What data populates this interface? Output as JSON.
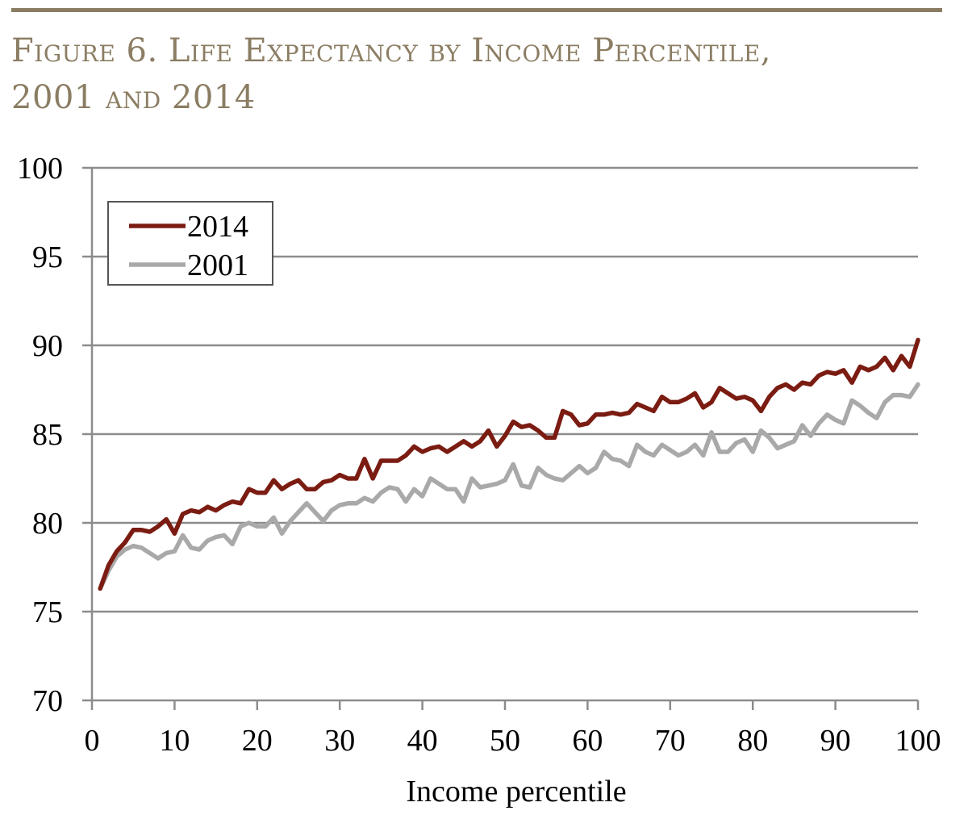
{
  "figure": {
    "title_line1": "Figure 6. Life Expectancy by Income Percentile,",
    "title_line2": "2001 and 2014"
  },
  "chart_data": {
    "type": "line",
    "xlabel": "Income percentile",
    "ylabel": "",
    "xlim": [
      0,
      100
    ],
    "ylim": [
      70,
      100
    ],
    "xticks": [
      0,
      10,
      20,
      30,
      40,
      50,
      60,
      70,
      80,
      90,
      100
    ],
    "yticks": [
      70,
      75,
      80,
      85,
      90,
      95,
      100
    ],
    "grid": "horizontal",
    "legend_position": "top-left",
    "x": [
      1,
      2,
      3,
      4,
      5,
      6,
      7,
      8,
      9,
      10,
      11,
      12,
      13,
      14,
      15,
      16,
      17,
      18,
      19,
      20,
      21,
      22,
      23,
      24,
      25,
      26,
      27,
      28,
      29,
      30,
      31,
      32,
      33,
      34,
      35,
      36,
      37,
      38,
      39,
      40,
      41,
      42,
      43,
      44,
      45,
      46,
      47,
      48,
      49,
      50,
      51,
      52,
      53,
      54,
      55,
      56,
      57,
      58,
      59,
      60,
      61,
      62,
      63,
      64,
      65,
      66,
      67,
      68,
      69,
      70,
      71,
      72,
      73,
      74,
      75,
      76,
      77,
      78,
      79,
      80,
      81,
      82,
      83,
      84,
      85,
      86,
      87,
      88,
      89,
      90,
      91,
      92,
      93,
      94,
      95,
      96,
      97,
      98,
      99,
      100
    ],
    "series": [
      {
        "name": "2014",
        "color": "#7b1c12",
        "values": [
          76.3,
          77.6,
          78.4,
          78.9,
          79.6,
          79.6,
          79.5,
          79.8,
          80.2,
          79.4,
          80.5,
          80.7,
          80.6,
          80.9,
          80.7,
          81.0,
          81.2,
          81.1,
          81.9,
          81.7,
          81.7,
          82.4,
          81.9,
          82.2,
          82.4,
          81.9,
          81.9,
          82.3,
          82.4,
          82.7,
          82.5,
          82.5,
          83.6,
          82.5,
          83.5,
          83.5,
          83.5,
          83.8,
          84.3,
          84.0,
          84.2,
          84.3,
          84.0,
          84.3,
          84.6,
          84.3,
          84.6,
          85.2,
          84.3,
          84.9,
          85.7,
          85.4,
          85.5,
          85.2,
          84.8,
          84.8,
          86.3,
          86.1,
          85.5,
          85.6,
          86.1,
          86.1,
          86.2,
          86.1,
          86.2,
          86.7,
          86.5,
          86.3,
          87.1,
          86.8,
          86.8,
          87.0,
          87.3,
          86.5,
          86.8,
          87.6,
          87.3,
          87.0,
          87.1,
          86.9,
          86.3,
          87.1,
          87.6,
          87.8,
          87.5,
          87.9,
          87.8,
          88.3,
          88.5,
          88.4,
          88.6,
          87.9,
          88.8,
          88.6,
          88.8,
          89.3,
          88.6,
          89.4,
          88.8,
          90.3
        ]
      },
      {
        "name": "2001",
        "color": "#a9a9a9",
        "values": [
          76.3,
          77.3,
          78.1,
          78.5,
          78.7,
          78.6,
          78.3,
          78.0,
          78.3,
          78.4,
          79.3,
          78.6,
          78.5,
          79.0,
          79.2,
          79.3,
          78.8,
          79.8,
          80.0,
          79.8,
          79.8,
          80.3,
          79.4,
          80.1,
          80.6,
          81.1,
          80.6,
          80.1,
          80.7,
          81.0,
          81.1,
          81.1,
          81.4,
          81.2,
          81.7,
          82.0,
          81.9,
          81.2,
          81.9,
          81.5,
          82.5,
          82.2,
          81.9,
          81.9,
          81.2,
          82.5,
          82.0,
          82.1,
          82.2,
          82.4,
          83.3,
          82.1,
          82.0,
          83.1,
          82.7,
          82.5,
          82.4,
          82.8,
          83.2,
          82.8,
          83.1,
          84.0,
          83.6,
          83.5,
          83.2,
          84.4,
          84.0,
          83.8,
          84.4,
          84.1,
          83.8,
          84.0,
          84.4,
          83.8,
          85.1,
          84.0,
          84.0,
          84.5,
          84.7,
          84.0,
          85.2,
          84.8,
          84.2,
          84.4,
          84.6,
          85.5,
          84.9,
          85.6,
          86.1,
          85.8,
          85.6,
          86.9,
          86.6,
          86.2,
          85.9,
          86.8,
          87.2,
          87.2,
          87.1,
          87.8
        ]
      }
    ]
  }
}
